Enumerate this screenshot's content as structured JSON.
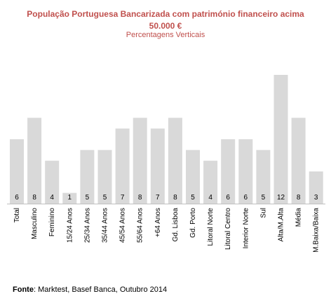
{
  "chart_data": {
    "type": "bar",
    "title": "População Portuguesa Bancarizada com património financeiro acima 50.000 €",
    "title_line1": "População Portuguesa Bancarizada com património financeiro acima",
    "title_line2": "50.000 €",
    "subtitle": "Percentagens Verticais",
    "categories": [
      "Total",
      "Masculino",
      "Feminino",
      "15/24 Anos",
      "25/34 Anos",
      "35/44 Anos",
      "45/54 Anos",
      "55/64 Anos",
      "+64 Anos",
      "Gd. Lisboa",
      "Gd. Porto",
      "Litoral Norte",
      "Litoral Centro",
      "Interior Norte",
      "Sul",
      "Alta/M.Alta",
      "Média",
      "M.Baixa/Baixa"
    ],
    "values": [
      6,
      8,
      4,
      1,
      5,
      5,
      7,
      8,
      7,
      8,
      5,
      4,
      6,
      6,
      5,
      12,
      8,
      3
    ],
    "ylim": [
      0,
      12
    ],
    "xlabel": "",
    "ylabel": "",
    "grid": false,
    "legend": "none",
    "bar_color": "#d9d9d9",
    "title_color": "#c0504d"
  },
  "source": {
    "label": "Fonte",
    "text": ": Marktest, Basef Banca, Outubro 2014"
  }
}
